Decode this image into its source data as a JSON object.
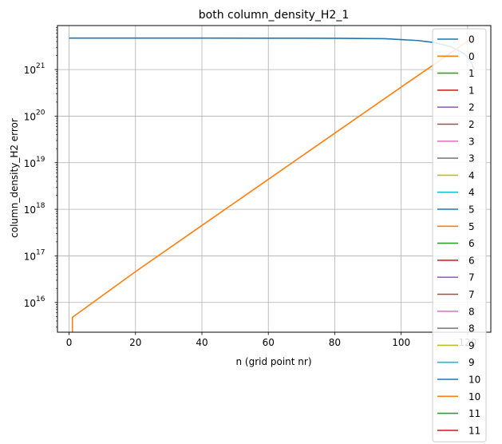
{
  "chart_data": {
    "type": "line",
    "title": "both column_density_H2_1",
    "xlabel": "n (grid point nr)",
    "ylabel": "column_density_H2 error",
    "xlim": [
      -3.5,
      127
    ],
    "ylim": [
      2300000000000000.0,
      8.8e+21
    ],
    "yscale": "log",
    "grid": true,
    "legend_position": "right",
    "x_ticks": [
      0,
      20,
      40,
      60,
      80,
      100,
      120
    ],
    "x_tick_labels": [
      "0",
      "20",
      "40",
      "60",
      "80",
      "100",
      "120"
    ],
    "y_ticks": [
      1e+16,
      1e+17,
      1e+18,
      1e+19,
      1e+20,
      1e+21
    ],
    "y_tick_labels": [
      {
        "base": "10",
        "exp": "16"
      },
      {
        "base": "10",
        "exp": "17"
      },
      {
        "base": "10",
        "exp": "18"
      },
      {
        "base": "10",
        "exp": "19"
      },
      {
        "base": "10",
        "exp": "20"
      },
      {
        "base": "10",
        "exp": "21"
      }
    ],
    "series": [
      {
        "name": "0",
        "color": "#1f77b4",
        "x": [
          0,
          20,
          40,
          60,
          80,
          95,
          105,
          110,
          115,
          119,
          121,
          122
        ],
        "y": [
          4.73e+21,
          4.73e+21,
          4.73e+21,
          4.72e+21,
          4.7e+21,
          4.6e+21,
          4.2e+21,
          3.8e+21,
          3.1e+21,
          2.2e+21,
          1.5e+21,
          1e+21
        ]
      },
      {
        "name": "0",
        "color": "#ff7f0e",
        "x": [
          1,
          1,
          1,
          20,
          40,
          60,
          80,
          100,
          110,
          120,
          122
        ],
        "y": [
          2300000000000000.0,
          2300000000000000.0,
          4800000000000000.0,
          4.6e+16,
          4.5e+17,
          4.4e+18,
          4.3e+19,
          4.2e+20,
          1.3e+21,
          4.1e+21,
          4.7e+21
        ]
      },
      {
        "name": "1",
        "color": "#2ca02c"
      },
      {
        "name": "1",
        "color": "#d62728"
      },
      {
        "name": "2",
        "color": "#9467bd"
      },
      {
        "name": "2",
        "color": "#8c564b"
      },
      {
        "name": "3",
        "color": "#e377c2"
      },
      {
        "name": "3",
        "color": "#7f7f7f"
      },
      {
        "name": "4",
        "color": "#bcbd22"
      },
      {
        "name": "4",
        "color": "#17becf"
      },
      {
        "name": "5",
        "color": "#1f77b4"
      },
      {
        "name": "5",
        "color": "#ff7f0e"
      },
      {
        "name": "6",
        "color": "#2ca02c"
      },
      {
        "name": "6",
        "color": "#d62728"
      },
      {
        "name": "7",
        "color": "#9467bd"
      },
      {
        "name": "7",
        "color": "#8c564b"
      },
      {
        "name": "8",
        "color": "#e377c2"
      },
      {
        "name": "8",
        "color": "#7f7f7f"
      },
      {
        "name": "9",
        "color": "#bcbd22"
      },
      {
        "name": "9",
        "color": "#17becf"
      },
      {
        "name": "10",
        "color": "#1f77b4"
      },
      {
        "name": "10",
        "color": "#ff7f0e"
      },
      {
        "name": "11",
        "color": "#2ca02c"
      },
      {
        "name": "11",
        "color": "#d62728"
      }
    ]
  }
}
